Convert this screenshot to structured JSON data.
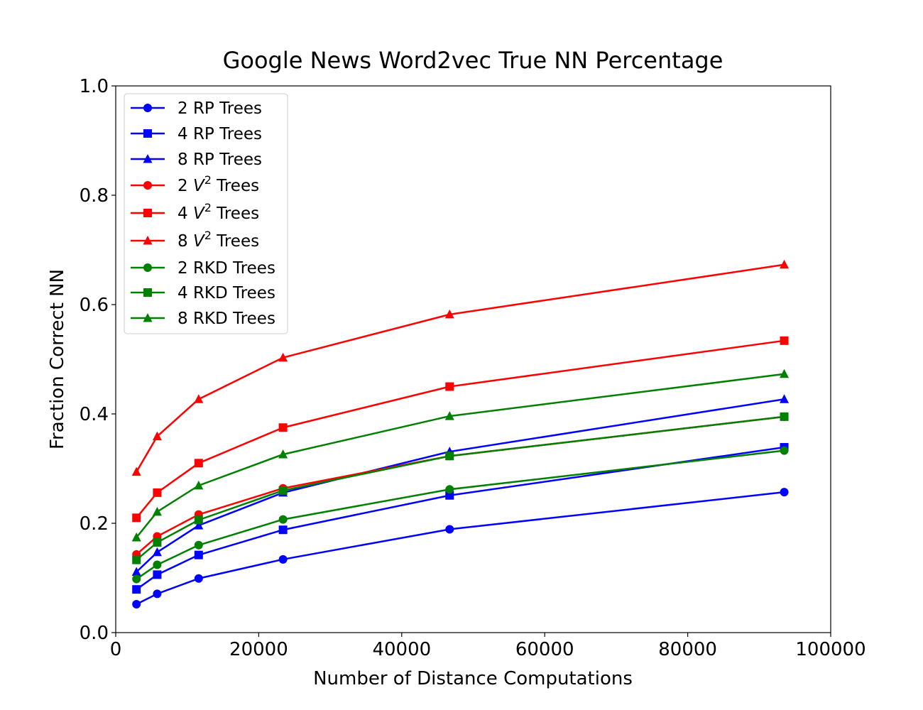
{
  "chart_data": {
    "type": "line",
    "title": "Google News Word2vec True NN Percentage",
    "xlabel": "Number of Distance Computations",
    "ylabel": "Fraction Correct NN",
    "xlim": [
      0,
      100000
    ],
    "ylim": [
      0.0,
      1.0
    ],
    "x_ticks": [
      "0",
      "20000",
      "40000",
      "60000",
      "80000",
      "100000"
    ],
    "y_ticks": [
      "0.0",
      "0.2",
      "0.4",
      "0.6",
      "0.8",
      "1.0"
    ],
    "grid": false,
    "legend_position": "top-left",
    "x": [
      2900,
      5800,
      11600,
      23400,
      46700,
      93500
    ],
    "series": [
      {
        "name_prefix": "2 ",
        "name_main": "RP Trees",
        "name_sup": "",
        "name_suffix": "",
        "color": "#0000ff",
        "marker": "circle",
        "values": [
          0.052,
          0.071,
          0.099,
          0.134,
          0.189,
          0.257
        ]
      },
      {
        "name_prefix": "4 ",
        "name_main": "RP Trees",
        "name_sup": "",
        "name_suffix": "",
        "color": "#0000ff",
        "marker": "square",
        "values": [
          0.079,
          0.106,
          0.142,
          0.188,
          0.251,
          0.339
        ]
      },
      {
        "name_prefix": "8 ",
        "name_main": "RP Trees",
        "name_sup": "",
        "name_suffix": "",
        "color": "#0000ff",
        "marker": "triangle",
        "values": [
          0.111,
          0.147,
          0.196,
          0.256,
          0.331,
          0.427
        ]
      },
      {
        "name_prefix": "2 ",
        "name_main": "V",
        "name_sup": "2",
        "name_suffix": " Trees",
        "color": "#ff0000",
        "marker": "circle",
        "values": [
          0.143,
          0.176,
          0.216,
          0.264,
          0.323,
          0.395
        ]
      },
      {
        "name_prefix": "4 ",
        "name_main": "V",
        "name_sup": "2",
        "name_suffix": " Trees",
        "color": "#ff0000",
        "marker": "square",
        "values": [
          0.21,
          0.256,
          0.31,
          0.375,
          0.45,
          0.534
        ]
      },
      {
        "name_prefix": "8 ",
        "name_main": "V",
        "name_sup": "2",
        "name_suffix": " Trees",
        "color": "#ff0000",
        "marker": "triangle",
        "values": [
          0.294,
          0.359,
          0.427,
          0.503,
          0.582,
          0.673
        ]
      },
      {
        "name_prefix": "2 ",
        "name_main": "RKD Trees",
        "name_sup": "",
        "name_suffix": "",
        "color": "#008000",
        "marker": "circle",
        "values": [
          0.098,
          0.124,
          0.16,
          0.207,
          0.262,
          0.333
        ]
      },
      {
        "name_prefix": "4 ",
        "name_main": "RKD Trees",
        "name_sup": "",
        "name_suffix": "",
        "color": "#008000",
        "marker": "square",
        "values": [
          0.133,
          0.165,
          0.206,
          0.26,
          0.323,
          0.395
        ]
      },
      {
        "name_prefix": "8 ",
        "name_main": "RKD Trees",
        "name_sup": "",
        "name_suffix": "",
        "color": "#008000",
        "marker": "triangle",
        "values": [
          0.174,
          0.221,
          0.269,
          0.326,
          0.396,
          0.473
        ]
      }
    ]
  }
}
